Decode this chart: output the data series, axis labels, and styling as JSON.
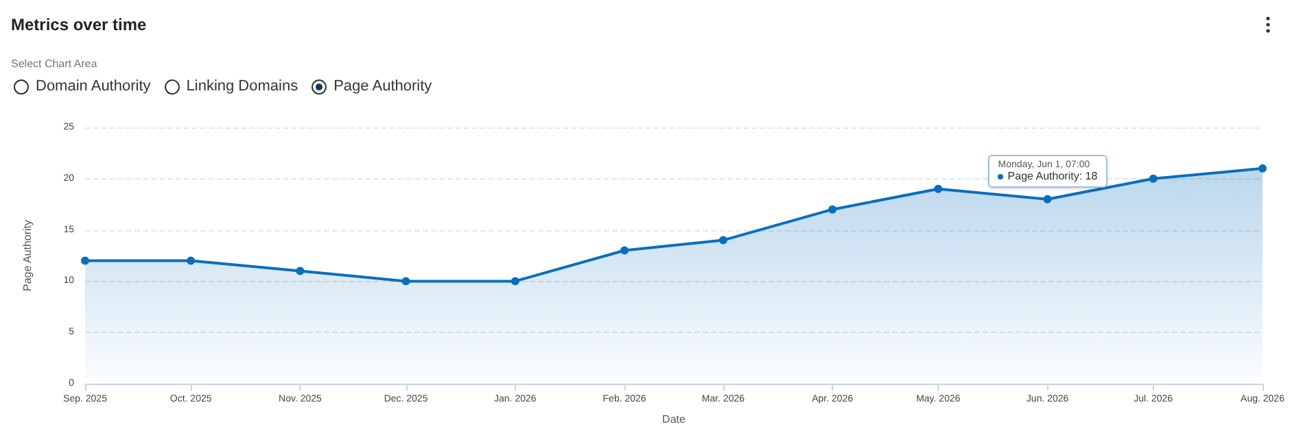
{
  "chart_data": {
    "type": "area",
    "title": "Metrics over time",
    "xlabel": "Date",
    "ylabel": "Page Authority",
    "annotations": [
      "Select Chart Area",
      "Domain Authority",
      "Linking Domains",
      "Page Authority",
      {
        "text": "Monday, Jun 1, 07:00\nPage Authority: 18",
        "x": "2026-06",
        "y": 18
      }
    ],
    "x": [
      "2025-09",
      "2025-10",
      "2025-11",
      "2025-12",
      "2026-01",
      "2026-02",
      "2026-03",
      "2026-04",
      "2026-05",
      "2026-06",
      "2026-07",
      "2026-08"
    ],
    "series": [
      {
        "color": "#0a6ebd",
        "values": [
          12,
          12,
          11,
          10,
          10,
          13,
          14,
          17,
          19,
          18,
          20,
          21
        ]
      }
    ],
    "xlim": [
      "2025-09",
      "2026-08"
    ],
    "xticks": [
      {
        "value": "2025-09",
        "label": "Sep. 2025"
      },
      {
        "value": "2025-10",
        "label": "Oct. 2025"
      },
      {
        "value": "2025-11",
        "label": "Nov. 2025"
      },
      {
        "value": "2025-12",
        "label": "Dec. 2025"
      },
      {
        "value": "2026-01",
        "label": "Jan. 2026"
      },
      {
        "value": "2026-02",
        "label": "Feb. 2026"
      },
      {
        "value": "2026-03",
        "label": "Mar. 2026"
      },
      {
        "value": "2026-04",
        "label": "Apr. 2026"
      },
      {
        "value": "2026-05",
        "label": "May. 2026"
      },
      {
        "value": "2026-06",
        "label": "Jun. 2026"
      },
      {
        "value": "2026-07",
        "label": "Jul. 2026"
      },
      {
        "value": "2026-08",
        "label": "Aug. 2026"
      }
    ],
    "ylim": [
      0,
      25
    ],
    "yticks": [
      0,
      5,
      10,
      15,
      20,
      25
    ],
    "grid": "y",
    "marker": "circle",
    "line_style": "solid"
  }
}
